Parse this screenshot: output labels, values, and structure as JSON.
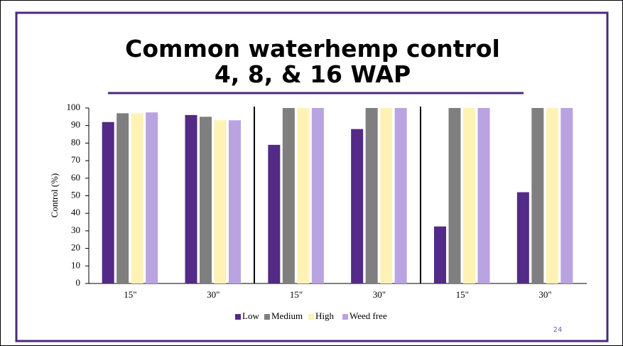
{
  "chart_data": {
    "type": "bar",
    "title": "Common waterhemp control",
    "subtitle": "4, 8, & 16 WAP",
    "y_label": "Control (%)",
    "categories": [
      "15\"",
      "30\"",
      "15\"",
      "30\"",
      "15\"",
      "30\""
    ],
    "series": [
      {
        "name": "Low",
        "color": "#532a87",
        "values": [
          92,
          96,
          79,
          88,
          32.5,
          52
        ]
      },
      {
        "name": "Medium",
        "color": "#7f7f7f",
        "values": [
          97,
          95,
          100,
          100,
          100,
          100
        ]
      },
      {
        "name": "High",
        "color": "#fff2b5",
        "values": [
          97,
          93,
          100,
          100,
          100,
          100
        ]
      },
      {
        "name": "Weed free",
        "color": "#b9a3e0",
        "values": [
          97.5,
          93,
          100,
          100,
          100,
          100
        ]
      }
    ],
    "ylim": [
      0,
      100
    ],
    "yticks": [
      0,
      10,
      20,
      30,
      40,
      50,
      60,
      70,
      80,
      90,
      100
    ],
    "legend": "bottom",
    "page_number": "24"
  }
}
